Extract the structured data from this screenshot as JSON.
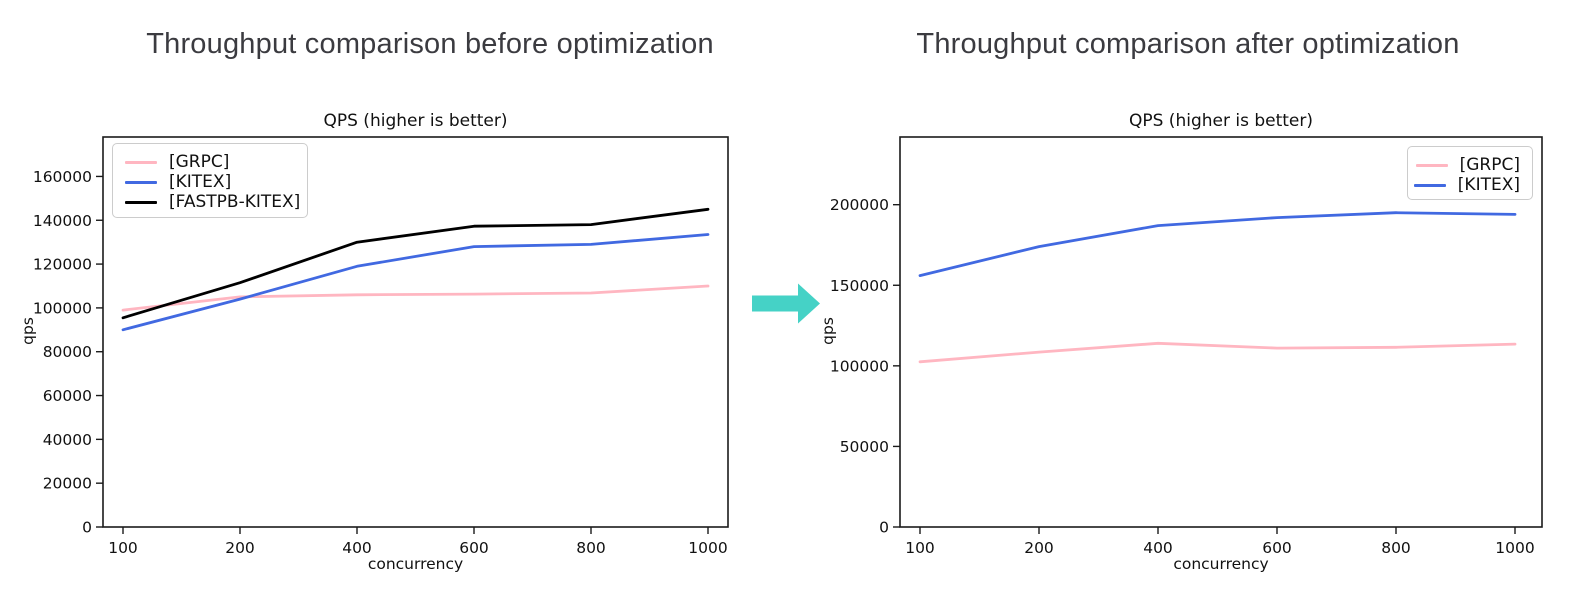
{
  "headings": {
    "before": "Throughput comparison before optimization",
    "after": "Throughput comparison after optimization"
  },
  "arrow": {
    "icon": "right-arrow-icon",
    "color": "#45D2C6"
  },
  "chart_data": [
    {
      "id": "before",
      "type": "line",
      "title": "QPS (higher is better)",
      "xlabel": "concurrency",
      "ylabel": "qps",
      "categories": [
        100,
        200,
        400,
        600,
        800,
        1000
      ],
      "series": [
        {
          "name": "[GRPC]",
          "color": "#FFB6C1",
          "values": [
            99000,
            105000,
            106000,
            106300,
            106800,
            110000
          ]
        },
        {
          "name": "[KITEX]",
          "color": "#4169E1",
          "values": [
            90000,
            104000,
            119000,
            128000,
            129000,
            133500
          ]
        },
        {
          "name": "[FASTPB-KITEX]",
          "color": "#000000",
          "values": [
            95500,
            111500,
            130000,
            137300,
            138000,
            145000
          ]
        }
      ],
      "ylim": [
        0,
        178000
      ],
      "yticks": [
        0,
        20000,
        40000,
        60000,
        80000,
        100000,
        120000,
        140000,
        160000
      ],
      "legend_position": "top-left",
      "grid": false
    },
    {
      "id": "after",
      "type": "line",
      "title": "QPS (higher is better)",
      "xlabel": "concurrency",
      "ylabel": "qps",
      "categories": [
        100,
        200,
        400,
        600,
        800,
        1000
      ],
      "series": [
        {
          "name": "[GRPC]",
          "color": "#FFB6C1",
          "values": [
            102500,
            108500,
            114000,
            111000,
            111500,
            113500
          ]
        },
        {
          "name": "[KITEX]",
          "color": "#4169E1",
          "values": [
            156000,
            174000,
            187000,
            192000,
            195000,
            194000
          ]
        }
      ],
      "ylim": [
        0,
        242000
      ],
      "yticks": [
        0,
        50000,
        100000,
        150000,
        200000
      ],
      "legend_position": "top-right",
      "grid": false
    }
  ]
}
